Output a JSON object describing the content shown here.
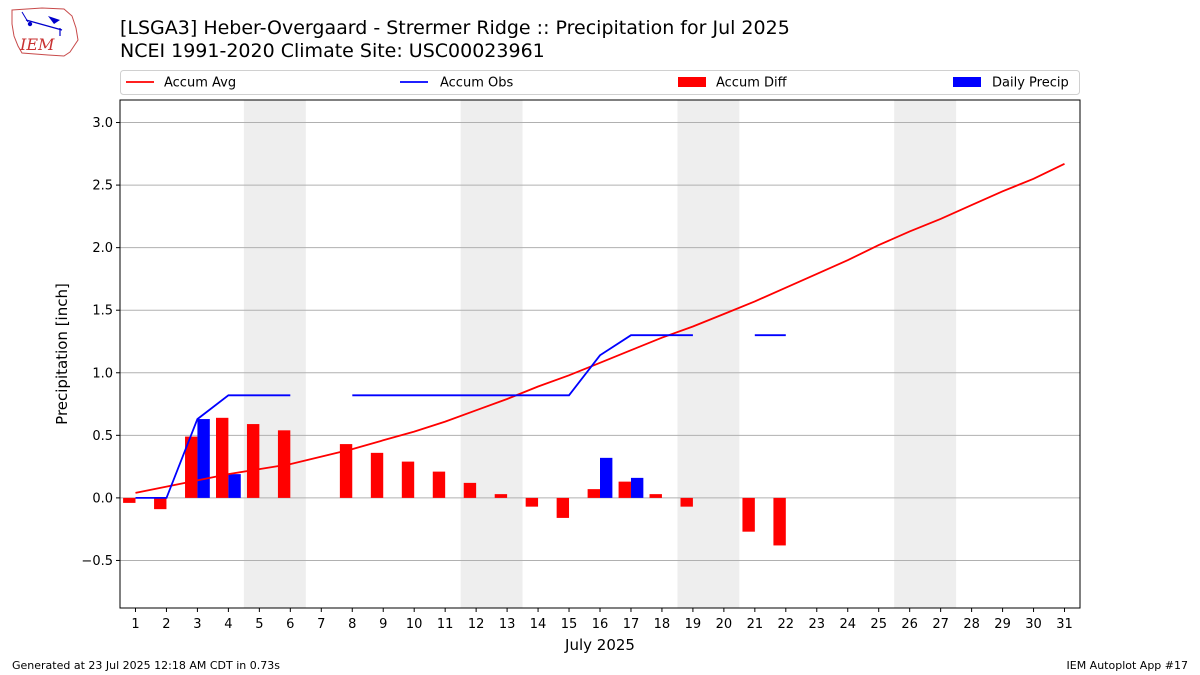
{
  "header": {
    "title_line1": "[LSGA3] Heber-Overgaard - Strermer Ridge :: Precipitation for Jul 2025",
    "title_line2": "NCEI 1991-2020 Climate Site: USC00023961",
    "logo_text": "IEM"
  },
  "footer": {
    "left": "Generated at 23 Jul 2025 12:18 AM CDT in 0.73s",
    "right": "IEM Autoplot App #17"
  },
  "colors": {
    "accum_avg": "#ff0000",
    "accum_obs": "#0000ff",
    "accum_diff": "#ff0000",
    "daily_precip": "#0000ff",
    "weekend_shade": "#eeeeee",
    "grid": "#b0b0b0"
  },
  "chart_data": {
    "type": "bar",
    "xlabel": "July 2025",
    "ylabel": "Precipitation [inch]",
    "xlim": [
      0.5,
      31.5
    ],
    "ylim": [
      -0.88,
      3.18
    ],
    "y_ticks": [
      -0.5,
      0.0,
      0.5,
      1.0,
      1.5,
      2.0,
      2.5,
      3.0
    ],
    "y_tick_labels": [
      "−0.5",
      "0.0",
      "0.5",
      "1.0",
      "1.5",
      "2.0",
      "2.5",
      "3.0"
    ],
    "x_ticks": [
      1,
      2,
      3,
      4,
      5,
      6,
      7,
      8,
      9,
      10,
      11,
      12,
      13,
      14,
      15,
      16,
      17,
      18,
      19,
      20,
      21,
      22,
      23,
      24,
      25,
      26,
      27,
      28,
      29,
      30,
      31
    ],
    "y_grid": true,
    "legend_position": "top",
    "weekend_spans": [
      [
        4.5,
        6.5
      ],
      [
        11.5,
        13.5
      ],
      [
        18.5,
        20.5
      ],
      [
        25.5,
        27.5
      ]
    ],
    "days": [
      1,
      2,
      3,
      4,
      5,
      6,
      7,
      8,
      9,
      10,
      11,
      12,
      13,
      14,
      15,
      16,
      17,
      18,
      19,
      20,
      21,
      22,
      23,
      24,
      25,
      26,
      27,
      28,
      29,
      30,
      31
    ],
    "series": [
      {
        "name": "Accum Avg",
        "kind": "line",
        "values": [
          0.04,
          0.09,
          0.14,
          0.19,
          0.23,
          0.27,
          0.33,
          0.39,
          0.46,
          0.53,
          0.61,
          0.7,
          0.79,
          0.89,
          0.98,
          1.08,
          1.18,
          1.28,
          1.37,
          1.47,
          1.57,
          1.68,
          1.79,
          1.9,
          2.02,
          2.13,
          2.23,
          2.34,
          2.45,
          2.55,
          2.67
        ]
      },
      {
        "name": "Accum Obs",
        "kind": "line",
        "values": [
          0.0,
          0.0,
          0.63,
          0.82,
          0.82,
          0.82,
          null,
          0.82,
          0.82,
          0.82,
          0.82,
          0.82,
          0.82,
          0.82,
          0.82,
          1.14,
          1.3,
          1.3,
          1.3,
          null,
          1.3,
          1.3,
          null,
          null,
          null,
          null,
          null,
          null,
          null,
          null,
          null
        ]
      },
      {
        "name": "Accum Diff",
        "kind": "bar",
        "values": [
          -0.04,
          -0.09,
          0.49,
          0.64,
          0.59,
          0.54,
          null,
          0.43,
          0.36,
          0.29,
          0.21,
          0.12,
          0.03,
          -0.07,
          -0.16,
          0.07,
          0.13,
          0.03,
          -0.07,
          null,
          -0.27,
          -0.38,
          null,
          null,
          null,
          null,
          null,
          null,
          null,
          null,
          null
        ]
      },
      {
        "name": "Daily Precip",
        "kind": "bar",
        "values": [
          0,
          0,
          0.63,
          0.19,
          0,
          0,
          0,
          0,
          0,
          0,
          0,
          0,
          0,
          0,
          0,
          0.32,
          0.16,
          0,
          0,
          0,
          0,
          0,
          0,
          0,
          0,
          0,
          0,
          0,
          0,
          0,
          0
        ]
      }
    ]
  }
}
